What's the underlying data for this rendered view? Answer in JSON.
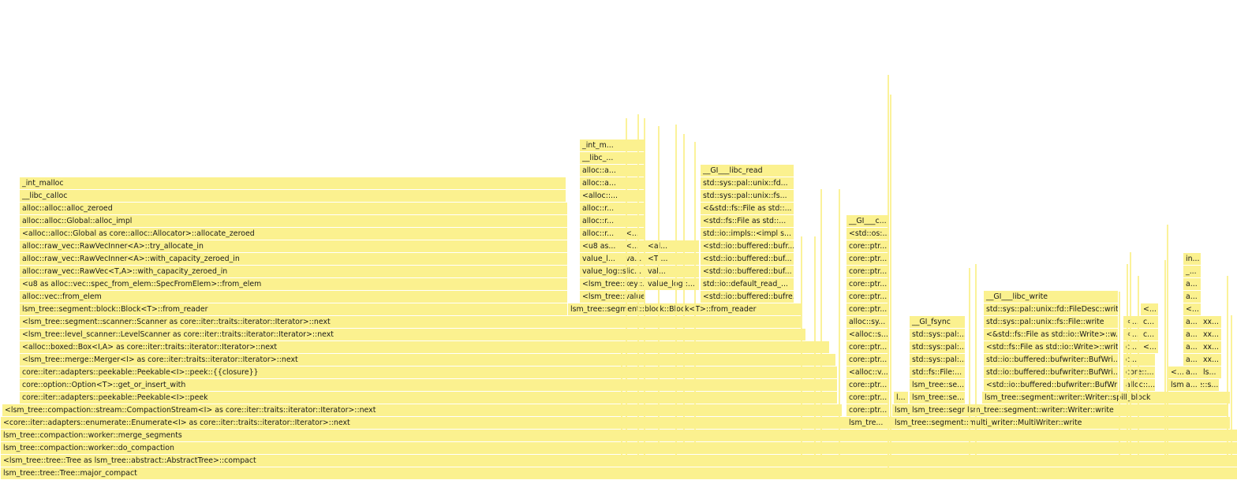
{
  "colors": {
    "frame_fill": "#fbf18f",
    "frame_text": "#1a1a1a",
    "background": "#ffffff"
  },
  "flamegraph": {
    "stack_root": [
      "lsm_tree::tree::Tree::major_compact",
      "<lsm_tree::tree::Tree as lsm_tree::abstract::AbstractTree>::compact",
      "lsm_tree::compaction::worker::do_compaction",
      "lsm_tree::compaction::worker::merge_segments"
    ],
    "enumerate_next": "<core::iter::adapters::enumerate::Enumerate<I> as core::iter::traits::iterator::Iterator>::next",
    "main_path": [
      "<lsm_tree::compaction::stream::CompactionStream<I> as core::iter::traits::iterator::Iterator>::next",
      "core::iter::adapters::peekable::Peekable<I>::peek",
      "core::option::Option<T>::get_or_insert_with",
      "core::iter::adapters::peekable::Peekable<I>::peek::{{closure}}",
      "<lsm_tree::merge::Merger<I> as core::iter::traits::iterator::Iterator>::next",
      "<alloc::boxed::Box<I,A> as core::iter::traits::iterator::Iterator>::next",
      "<lsm_tree::level_scanner::LevelScanner as core::iter::traits::iterator::Iterator>::next",
      "<lsm_tree::segment::scanner::Scanner as core::iter::traits::iterator::Iterator>::next",
      "lsm_tree::segment::block::Block<T>::from_reader",
      "alloc::vec::from_elem",
      "<u8 as alloc::vec::spec_from_elem::SpecFromElem>::from_elem",
      "alloc::raw_vec::RawVec<T,A>::with_capacity_zeroed_in",
      "alloc::raw_vec::RawVecInner<A>::with_capacity_zeroed_in",
      "alloc::raw_vec::RawVecInner<A>::try_allocate_in",
      "<alloc::alloc::Global as core::alloc::Allocator>::allocate_zeroed",
      "alloc::alloc::Global::alloc_impl",
      "alloc::alloc::alloc_zeroed",
      "__libc_calloc",
      "_int_malloc"
    ],
    "from_reader_b": "lsm_tree::segment::block::Block<T>::from_reader",
    "mid_left": [
      "<lsm_tree::value::InternalValue ...",
      "<lsm_tree::key::...",
      "value_log::slic...",
      "value_l...",
      "<u8 as...",
      "alloc::r...",
      "alloc::r...",
      "alloc::r...",
      "<alloc::...",
      "alloc::a...",
      "alloc::a...",
      "__libc_...",
      "_int_m..."
    ],
    "mid_left2": [
      "va...",
      "<...",
      "<..."
    ],
    "mid_mid": [
      "value_log::...",
      "val...",
      "<T ...",
      "<al..."
    ],
    "read_path": [
      "<std::io::buffered::bufre...",
      "std::io::default_read_...",
      "<std::io::buffered::buf...",
      "<std::io::buffered::buf...",
      "<std::io::buffered::bufr...",
      "std::io::impls::<impl s...",
      "<std::fs::File as std::...",
      "<&std::fs::File as std::...",
      "std::sys::pal::unix::fs...",
      "std::sys::pal::unix::fd...",
      "__GI___libc_read"
    ],
    "mid_right": [
      "lsm_tre...",
      "core::ptr...",
      "core::ptr...",
      "core::ptr...",
      "<alloc::v...",
      "core::ptr...",
      "core::ptr...",
      "<alloc::s...",
      "alloc::sy...",
      "core::ptr...",
      "core::ptr...",
      "core::ptr...",
      "core::ptr...",
      "core::ptr...",
      "core::ptr...",
      "<std::os:...",
      "__GI___c..."
    ],
    "multi_writer": "lsm_tree::segment::multi_writer::MultiWriter::write",
    "fsync_path": [
      "lsm_tree::segme...",
      "lsm_tree::se...",
      "lsm_tree::se...",
      "std::fs::File:...",
      "std::sys::pal:...",
      "std::sys::pal:...",
      "std::sys::pal:...",
      "__GI_fsync"
    ],
    "fsync_small": "l...",
    "segmt_small": "lsm_tree::segme...",
    "writer_write": "lsm_tree::segment::writer::Writer::write",
    "spill_block": "lsm_tree::segment::writer::Writer::spill_block",
    "write_path": [
      "<std::io::buffered::bufwriter::BufWri...",
      "std::io::buffered::bufwriter::BufWri...",
      "std::io::buffered::bufwriter::BufWri...",
      "<std::fs::File as std::io::Write>::write",
      "<&std::fs::File as std::io::Write>::w...",
      "std::sys::pal::unix::fs::File::write",
      "std::sys::pal::unix::fd::FileDesc::write",
      "__GI___libc_write"
    ],
    "right_a": [
      "alloc::...",
      "core::...",
      "c...",
      "c...",
      "<...",
      "<..."
    ],
    "right_a2": [
      "<...",
      "c...",
      "c...",
      "<..."
    ],
    "right_b": [
      "lsm_tr...",
      "<...",
      "lsm_tree::s..."
    ],
    "right_c": [
      "a...",
      "a...",
      "a...",
      "a...",
      "a...",
      "a...",
      "<...",
      "a...",
      "a...",
      "_...",
      "in..."
    ],
    "right_d": [
      "ls...",
      "xx...",
      "xx...",
      "xx...",
      "xx..."
    ]
  }
}
